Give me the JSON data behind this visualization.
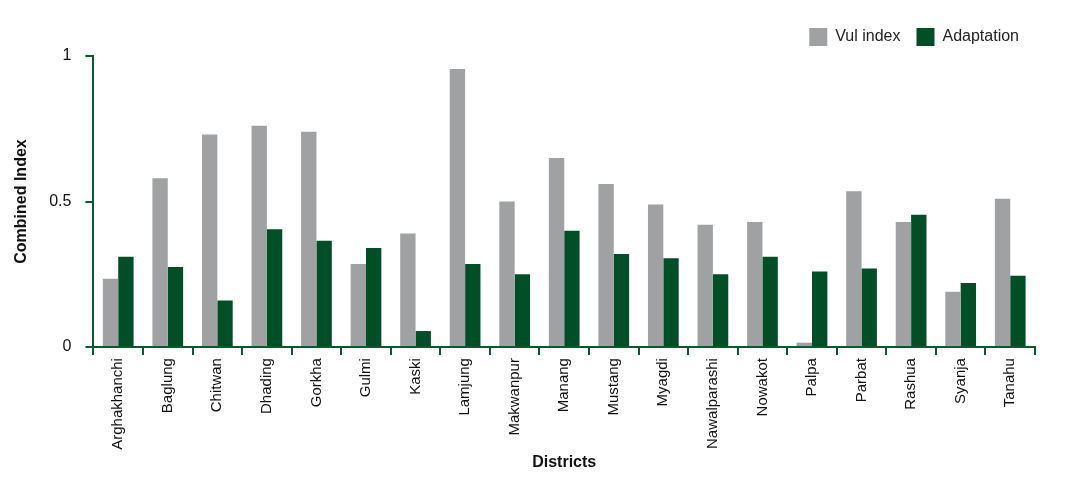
{
  "chart_data": {
    "type": "bar",
    "xlabel": "Districts",
    "ylabel": "Combined Index",
    "categories": [
      "Arghakhanchi",
      "Baglung",
      "Chitwan",
      "Dhading",
      "Gorkha",
      "Gulmi",
      "Kaski",
      "Lamjung",
      "Makwanpur",
      "Manang",
      "Mustang",
      "Myagdi",
      "Nawalparashi",
      "Nowakot",
      "Palpa",
      "Parbat",
      "Rashua",
      "Syanja",
      "Tanahu"
    ],
    "series": [
      {
        "name": "Vul index",
        "color": "#a0a1a3",
        "values": [
          0.235,
          0.58,
          0.73,
          0.76,
          0.74,
          0.285,
          0.39,
          0.955,
          0.5,
          0.65,
          0.56,
          0.49,
          0.42,
          0.43,
          0.015,
          0.535,
          0.43,
          0.19,
          0.51
        ]
      },
      {
        "name": "Adaptation",
        "color": "#004f27",
        "values": [
          0.31,
          0.275,
          0.16,
          0.405,
          0.365,
          0.34,
          0.055,
          0.285,
          0.25,
          0.4,
          0.32,
          0.305,
          0.25,
          0.31,
          0.26,
          0.27,
          0.455,
          0.22,
          0.245
        ]
      }
    ],
    "ylim": [
      0,
      1
    ],
    "yticks": [
      0,
      0.5,
      1
    ],
    "legend": "top right"
  }
}
